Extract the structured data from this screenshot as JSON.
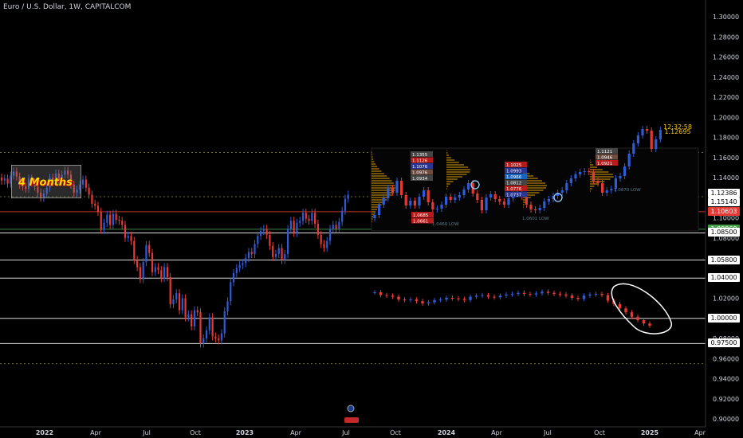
{
  "header": {
    "title": "Euro / U.S. Dollar, 1W, CAPITALCOM"
  },
  "annotation": {
    "text": "4 Months"
  },
  "price_labels": [
    {
      "key": "last_time",
      "text": "12:32:58",
      "color": "#f5c518"
    },
    {
      "key": "last_price",
      "text": "1.12695",
      "color": "#f5c518"
    },
    {
      "key": "pa",
      "text": "1.12386",
      "bg": "#ffffff",
      "fg": "#000000"
    },
    {
      "key": "pb",
      "text": "1.15140",
      "bg": "#ffffff",
      "fg": "#000000"
    },
    {
      "key": "red",
      "text": "1.10603",
      "bg": "#e53935",
      "fg": "#ffffff"
    },
    {
      "key": "green",
      "text": "1.08860",
      "bg": "#43a047",
      "fg": "#ffffff"
    },
    {
      "key": "white1",
      "text": "1.08500",
      "bg": "#ffffff",
      "fg": "#000000"
    },
    {
      "key": "white2",
      "text": "1.05800",
      "bg": "#ffffff",
      "fg": "#000000"
    },
    {
      "key": "white3",
      "text": "1.04000",
      "bg": "#ffffff",
      "fg": "#000000"
    },
    {
      "key": "white4",
      "text": "1.00000",
      "bg": "#ffffff",
      "fg": "#000000"
    },
    {
      "key": "white5",
      "text": "0.97500",
      "bg": "#ffffff",
      "fg": "#000000"
    }
  ],
  "inset_labels": {
    "top": [
      "1.1355",
      "1.1126",
      "1.1076",
      "1.0976",
      "1.0934"
    ],
    "mid": [
      "1.1025",
      "1.0993",
      "1.0966",
      "1.0812",
      "1.0776",
      "1.0737"
    ],
    "right": [
      "1.1121",
      "1.0946",
      "1.0921"
    ],
    "bottom": [
      "1.0685",
      "1.0661"
    ],
    "lows": [
      "1.0460 LOW",
      "1.0601 LOW",
      "1.0870 LOW"
    ]
  },
  "colors": {
    "up": "#2e5bd6",
    "down": "#e53935",
    "grid": "#1a1a1a"
  },
  "chart_data": [
    {
      "type": "candlestick",
      "title": "Euro / U.S. Dollar, 1W, CAPITALCOM",
      "xlabel": "",
      "ylabel": "",
      "x_ticks": [
        "2022",
        "Apr",
        "Jul",
        "Oct",
        "2023",
        "Apr",
        "Jul",
        "Oct",
        "2024",
        "Apr",
        "Jul",
        "Oct",
        "2025",
        "Apr"
      ],
      "y_ticks": [
        0.9,
        0.92,
        0.94,
        0.96,
        0.98,
        1.0,
        1.02,
        1.04,
        1.06,
        1.08,
        1.1,
        1.12,
        1.14,
        1.16,
        1.18,
        1.2,
        1.22,
        1.24,
        1.26,
        1.28,
        1.3
      ],
      "ylim": [
        0.89,
        1.31
      ],
      "grid": false,
      "horizontal_levels": [
        1.106,
        1.0886,
        1.085,
        1.058,
        1.04,
        1.0,
        0.975
      ],
      "series": [
        {
          "segment": "main",
          "start_x": 0,
          "closes": [
            1.137,
            1.139,
            1.134,
            1.142,
            1.146,
            1.141,
            1.133,
            1.131,
            1.129,
            1.139,
            1.135,
            1.131,
            1.125,
            1.12,
            1.124,
            1.13,
            1.14,
            1.136,
            1.144,
            1.137,
            1.143,
            1.147,
            1.143,
            1.133,
            1.125,
            1.128,
            1.133,
            1.138,
            1.13,
            1.123,
            1.114,
            1.112,
            1.106,
            1.088,
            1.095,
            1.103,
            1.093,
            1.104,
            1.098,
            1.097,
            1.093,
            1.08,
            1.082,
            1.077,
            1.058,
            1.051,
            1.039,
            1.056,
            1.073,
            1.065,
            1.046,
            1.051,
            1.048,
            1.04,
            1.051,
            1.041,
            1.014,
            1.019,
            1.025,
            1.008,
            1.02,
            1.001,
            1.004,
            0.992,
            1.008,
            1.006,
            0.975,
            0.98,
            0.988,
            1.001,
            0.982,
            0.98,
            0.978,
            0.985,
            1.007,
            1.017,
            1.036,
            1.045,
            1.05,
            1.053,
            1.055,
            1.06,
            1.066,
            1.064,
            1.074,
            1.082,
            1.087,
            1.089,
            1.083,
            1.072,
            1.061,
            1.064,
            1.07,
            1.058,
            1.064,
            1.089,
            1.097,
            1.085,
            1.095,
            1.097,
            1.105,
            1.099,
            1.097,
            1.105,
            1.094,
            1.083,
            1.074,
            1.07,
            1.077,
            1.089,
            1.093,
            1.089,
            1.096,
            1.107,
            1.119,
            1.123
          ]
        },
        {
          "segment": "inset_top",
          "x_range": [
            "Oct 2023",
            "Jan 2025"
          ],
          "y_range": [
            1.057,
            1.172
          ],
          "closes": [
            1.064,
            1.077,
            1.085,
            1.098,
            1.092,
            1.107,
            1.089,
            1.076,
            1.082,
            1.076,
            1.087,
            1.095,
            1.08,
            1.071,
            1.072,
            1.077,
            1.087,
            1.083,
            1.086,
            1.089,
            1.096,
            1.104,
            1.091,
            1.083,
            1.07,
            1.086,
            1.09,
            1.084,
            1.081,
            1.077,
            1.085,
            1.093,
            1.091,
            1.087,
            1.077,
            1.071,
            1.07,
            1.073,
            1.081,
            1.084,
            1.088,
            1.092,
            1.095,
            1.104,
            1.11,
            1.115,
            1.118,
            1.119,
            1.118,
            1.107,
            1.104,
            1.092,
            1.095,
            1.097,
            1.11,
            1.113,
            1.125,
            1.141,
            1.154,
            1.164,
            1.172,
            1.17,
            1.147,
            1.159,
            1.171
          ]
        },
        {
          "segment": "inset_bottom",
          "x_range": [
            "2024",
            "2025"
          ],
          "closes": [
            1.097,
            1.092,
            1.091,
            1.089,
            1.084,
            1.083,
            1.084,
            1.081,
            1.077,
            1.079,
            1.083,
            1.084,
            1.087,
            1.086,
            1.085,
            1.083,
            1.089,
            1.091,
            1.092,
            1.089,
            1.088,
            1.091,
            1.093,
            1.094,
            1.096,
            1.094,
            1.093,
            1.095,
            1.098,
            1.096,
            1.094,
            1.093,
            1.091,
            1.087,
            1.085,
            1.091,
            1.093,
            1.094,
            1.092,
            1.082,
            1.076,
            1.068,
            1.061,
            1.053,
            1.047,
            1.041,
            1.037
          ]
        }
      ]
    }
  ]
}
